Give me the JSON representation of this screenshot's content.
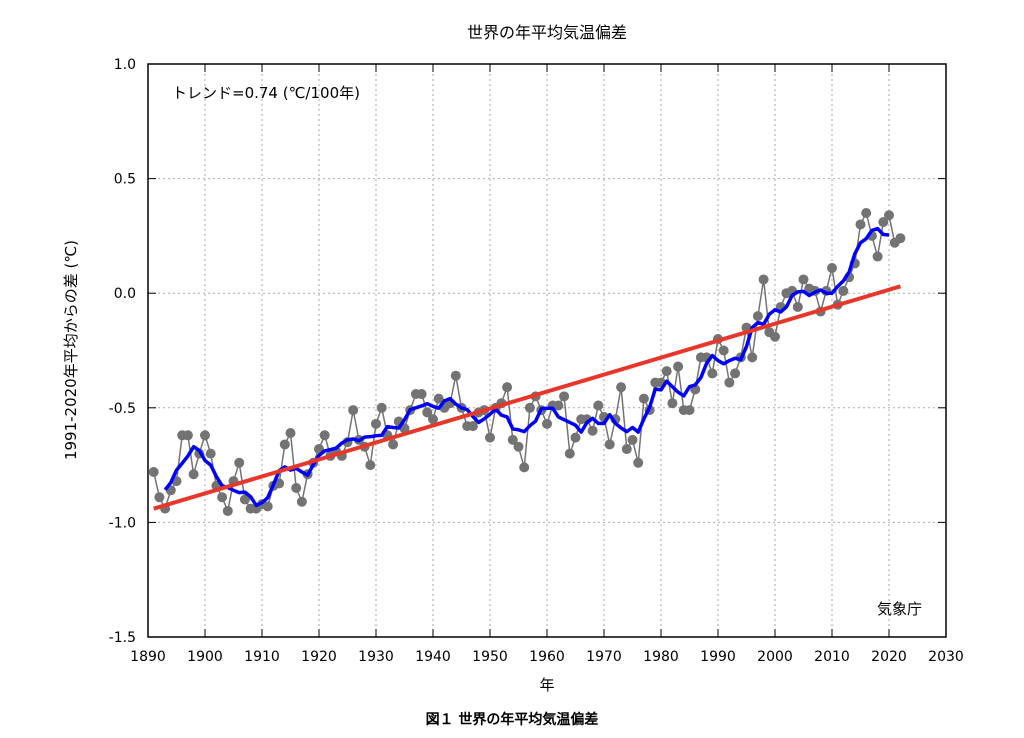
{
  "chart_data": {
    "type": "line",
    "title": "世界の年平均気温偏差",
    "xlabel": "年",
    "ylabel": "1991-2020年平均からの差 (℃)",
    "xlim": [
      1890,
      2030
    ],
    "ylim": [
      -1.5,
      1.0
    ],
    "xticks": [
      "1890",
      "1900",
      "1910",
      "1920",
      "1930",
      "1940",
      "1950",
      "1960",
      "1970",
      "1980",
      "1990",
      "2000",
      "2010",
      "2020",
      "2030"
    ],
    "yticks": [
      "1.0",
      "0.5",
      "0.0",
      "-0.5",
      "-1.0",
      "-1.5"
    ],
    "ytick_values": [
      1.0,
      0.5,
      0.0,
      -0.5,
      -1.0,
      -1.5
    ],
    "grid": true,
    "annotation": "トレンド=0.74 (℃/100年)",
    "source": "気象庁",
    "caption": "図１ 世界の年平均気温偏差",
    "trend_per_century": 0.74,
    "trend_line": {
      "x": [
        1891,
        2022
      ],
      "y": [
        -0.94,
        0.03
      ]
    },
    "running_mean_window": 5,
    "colors": {
      "annual": "#737373",
      "running_mean": "#0000ff",
      "trend": "#e8362a"
    },
    "start_year": 1891,
    "values": [
      -0.78,
      -0.89,
      -0.94,
      -0.86,
      -0.82,
      -0.62,
      -0.62,
      -0.79,
      -0.7,
      -0.62,
      -0.7,
      -0.84,
      -0.89,
      -0.95,
      -0.82,
      -0.74,
      -0.9,
      -0.94,
      -0.94,
      -0.92,
      -0.93,
      -0.84,
      -0.83,
      -0.66,
      -0.61,
      -0.85,
      -0.91,
      -0.79,
      -0.74,
      -0.68,
      -0.62,
      -0.71,
      -0.69,
      -0.71,
      -0.65,
      -0.51,
      -0.64,
      -0.67,
      -0.75,
      -0.57,
      -0.5,
      -0.62,
      -0.66,
      -0.56,
      -0.59,
      -0.51,
      -0.44,
      -0.44,
      -0.52,
      -0.55,
      -0.46,
      -0.5,
      -0.48,
      -0.36,
      -0.5,
      -0.58,
      -0.58,
      -0.52,
      -0.51,
      -0.63,
      -0.5,
      -0.48,
      -0.41,
      -0.64,
      -0.67,
      -0.76,
      -0.5,
      -0.45,
      -0.51,
      -0.57,
      -0.49,
      -0.49,
      -0.45,
      -0.7,
      -0.63,
      -0.55,
      -0.55,
      -0.6,
      -0.49,
      -0.54,
      -0.66,
      -0.55,
      -0.41,
      -0.68,
      -0.64,
      -0.74,
      -0.46,
      -0.51,
      -0.39,
      -0.39,
      -0.34,
      -0.48,
      -0.32,
      -0.51,
      -0.51,
      -0.42,
      -0.28,
      -0.28,
      -0.35,
      -0.2,
      -0.25,
      -0.39,
      -0.35,
      -0.28,
      -0.15,
      -0.28,
      -0.1,
      0.06,
      -0.17,
      -0.19,
      -0.06,
      0.0,
      0.01,
      -0.06,
      0.06,
      0.02,
      0.01,
      -0.08,
      0.01,
      0.11,
      -0.05,
      0.01,
      0.07,
      0.13,
      0.3,
      0.35,
      0.25,
      0.16,
      0.31,
      0.34,
      0.22,
      0.24
    ]
  }
}
